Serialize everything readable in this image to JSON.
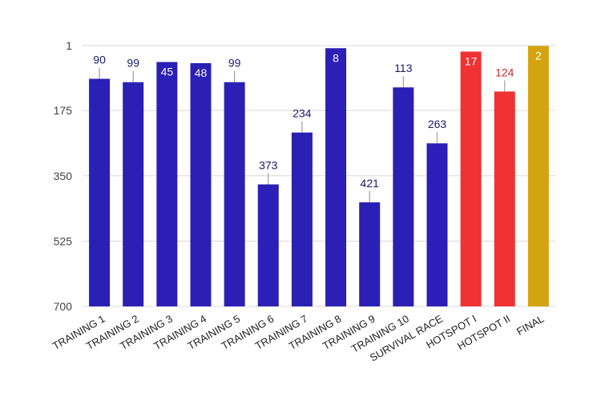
{
  "chart_data": {
    "type": "bar",
    "title": "",
    "xlabel": "",
    "ylabel": "",
    "y_axis_inverted": true,
    "ylim": [
      1,
      700
    ],
    "y_ticks": [
      1,
      175,
      350,
      525,
      700
    ],
    "grid": true,
    "legend": "none",
    "categories": [
      "TRAINING 1",
      "TRAINING 2",
      "TRAINING 3",
      "TRAINING 4",
      "TRAINING 5",
      "TRAINING 6",
      "TRAINING 7",
      "TRAINING 8",
      "TRAINING 9",
      "TRAINING 10",
      "SURVIVAL RACE",
      "HOTSPOT I",
      "HOTSPOT II",
      "FINAL"
    ],
    "values": [
      90,
      99,
      45,
      48,
      99,
      373,
      234,
      8,
      421,
      113,
      263,
      17,
      124,
      2
    ],
    "bar_colors": [
      "#2b1fb5",
      "#2b1fb5",
      "#2b1fb5",
      "#2b1fb5",
      "#2b1fb5",
      "#2b1fb5",
      "#2b1fb5",
      "#2b1fb5",
      "#2b1fb5",
      "#2b1fb5",
      "#2b1fb5",
      "#f03232",
      "#f03232",
      "#d4a310"
    ],
    "label_colors": {
      "inside": "#ffffff",
      "outside_blue": "#1a1a6e",
      "outside_red": "#cc2a2a"
    }
  }
}
